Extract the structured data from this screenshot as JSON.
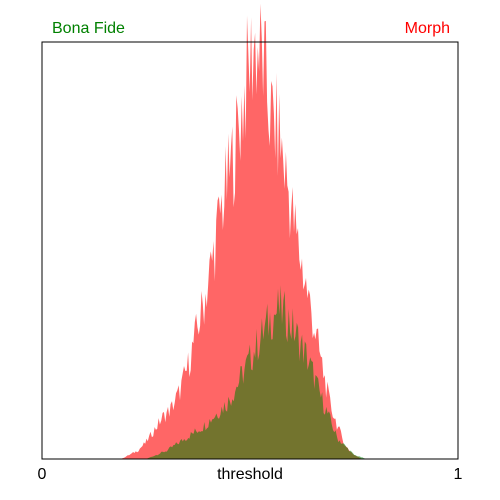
{
  "chart_data": {
    "type": "area",
    "legend": {
      "left_label": "Bona Fide",
      "left_color": "#008000",
      "right_label": "Morph",
      "right_color": "#ff0000"
    },
    "xlabel": "threshold",
    "xlim": [
      0,
      1
    ],
    "x_tick_labels": [
      "0",
      "1"
    ],
    "overlap_color": "#c0392b",
    "series": [
      {
        "name": "Bona Fide",
        "color": "#008000",
        "opacity": 0.55,
        "x": [
          0.2,
          0.25,
          0.3,
          0.33,
          0.36,
          0.39,
          0.42,
          0.45,
          0.47,
          0.49,
          0.51,
          0.53,
          0.55,
          0.57,
          0.59,
          0.61,
          0.63,
          0.65,
          0.67,
          0.69,
          0.71,
          0.73,
          0.75,
          0.78
        ],
        "values": [
          0.0,
          0.0,
          0.02,
          0.04,
          0.06,
          0.08,
          0.11,
          0.14,
          0.18,
          0.22,
          0.26,
          0.3,
          0.34,
          0.36,
          0.34,
          0.3,
          0.26,
          0.21,
          0.15,
          0.1,
          0.05,
          0.03,
          0.01,
          0.0
        ]
      },
      {
        "name": "Morph",
        "color": "#ff0000",
        "opacity": 0.6,
        "x": [
          0.19,
          0.21,
          0.23,
          0.25,
          0.27,
          0.29,
          0.31,
          0.33,
          0.35,
          0.37,
          0.39,
          0.41,
          0.43,
          0.45,
          0.47,
          0.49,
          0.51,
          0.53,
          0.55,
          0.57,
          0.59,
          0.61,
          0.63,
          0.65,
          0.67,
          0.69,
          0.71,
          0.73,
          0.75,
          0.77
        ],
        "values": [
          0.0,
          0.01,
          0.02,
          0.04,
          0.07,
          0.1,
          0.12,
          0.16,
          0.22,
          0.3,
          0.38,
          0.48,
          0.6,
          0.68,
          0.78,
          0.9,
          1.0,
          0.96,
          0.82,
          0.78,
          0.66,
          0.54,
          0.44,
          0.34,
          0.24,
          0.14,
          0.08,
          0.03,
          0.01,
          0.0
        ]
      }
    ]
  }
}
